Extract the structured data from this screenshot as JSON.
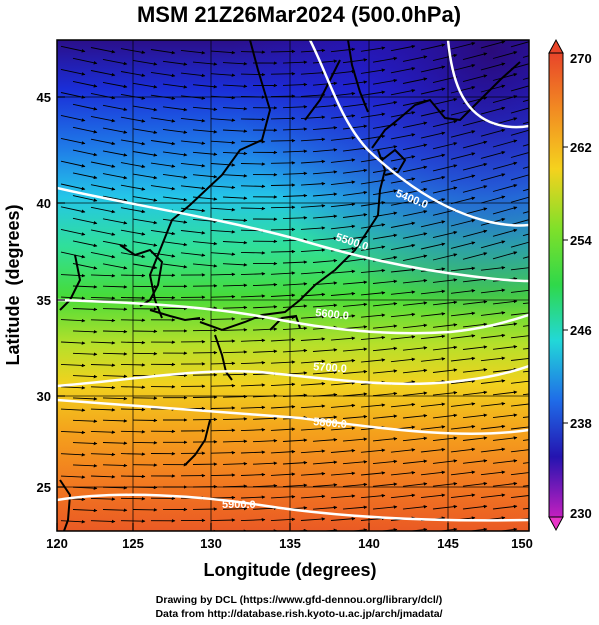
{
  "title": "MSM 21Z26Mar2024 (500.0hPa)",
  "xlabel": "Longitude (degrees)",
  "ylabel": "Latitude  (degrees)",
  "x_ticks": [
    "120",
    "125",
    "130",
    "135",
    "140",
    "145",
    "150"
  ],
  "y_ticks": [
    "25",
    "30",
    "35",
    "40",
    "45"
  ],
  "colorbar_ticks": [
    "270",
    "262",
    "254",
    "246",
    "238",
    "230"
  ],
  "contour_labels": [
    "5400.0",
    "5500.0",
    "5600.0",
    "5700.0",
    "5800.0",
    "5900.0"
  ],
  "credits": {
    "line1": "Drawing by DCL (https://www.gfd-dennou.org/library/dcl/)",
    "line2": "Data from http://database.rish.kyoto-u.ac.jp/arch/jmadata/"
  },
  "map": {
    "lon_range": [
      120,
      150
    ],
    "lat_range": [
      22.5,
      48
    ],
    "temperature_range_K": [
      230,
      270
    ],
    "contour_color": "#ffffff",
    "coastline_color": "#000000",
    "wind_arrow_color": "#000000"
  }
}
